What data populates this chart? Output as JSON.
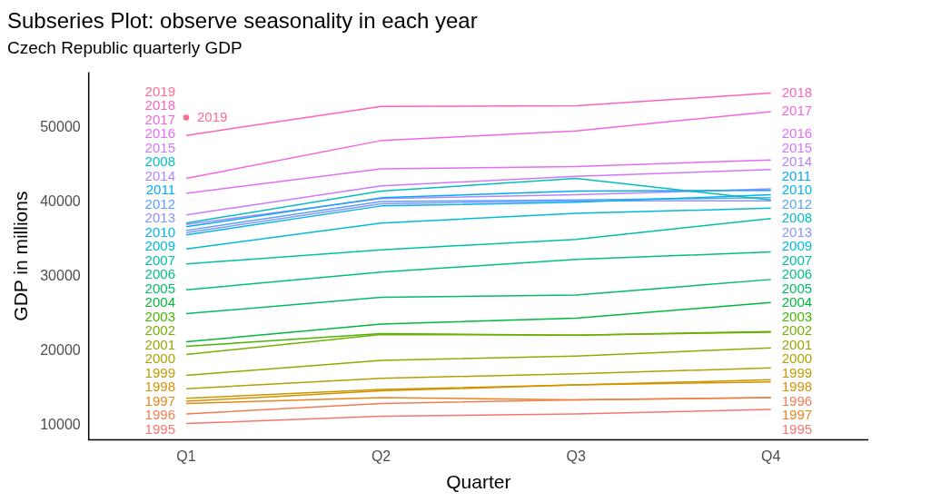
{
  "chart_data": {
    "type": "line",
    "title": "Subseries Plot: observe seasonality in each year",
    "subtitle": "Czech Republic quarterly GDP",
    "xlabel": "Quarter",
    "ylabel": "GDP in millions",
    "categories": [
      "Q1",
      "Q2",
      "Q3",
      "Q4"
    ],
    "ylim": [
      8000,
      57500
    ],
    "yticks": [
      10000,
      20000,
      30000,
      40000,
      50000
    ],
    "grid": false,
    "legend": false,
    "marker": "none",
    "line_style": "solid",
    "series": [
      {
        "name": "1995",
        "color": "#f8766d",
        "values": [
          10200,
          11200,
          11500,
          12100
        ]
      },
      {
        "name": "1996",
        "color": "#f27d52",
        "values": [
          11500,
          12900,
          13400,
          13700
        ]
      },
      {
        "name": "1997",
        "color": "#e7861b",
        "values": [
          12900,
          13700,
          13400,
          13700
        ]
      },
      {
        "name": "1998",
        "color": "#d89000",
        "values": [
          13200,
          14600,
          15400,
          15800
        ]
      },
      {
        "name": "1999",
        "color": "#c49a00",
        "values": [
          13600,
          14800,
          15400,
          16100
        ]
      },
      {
        "name": "2000",
        "color": "#aea200",
        "values": [
          14900,
          16300,
          16900,
          17700
        ]
      },
      {
        "name": "2001",
        "color": "#95a900",
        "values": [
          16700,
          18700,
          19300,
          20400
        ]
      },
      {
        "name": "2002",
        "color": "#75af00",
        "values": [
          19500,
          22200,
          22100,
          22500
        ]
      },
      {
        "name": "2003",
        "color": "#45b500",
        "values": [
          20600,
          22300,
          22100,
          22600
        ]
      },
      {
        "name": "2004",
        "color": "#00b93c",
        "values": [
          21200,
          23600,
          24400,
          26500
        ]
      },
      {
        "name": "2005",
        "color": "#00bc67",
        "values": [
          25000,
          27200,
          27500,
          29600
        ]
      },
      {
        "name": "2006",
        "color": "#00bf86",
        "values": [
          28200,
          30600,
          32300,
          33300
        ]
      },
      {
        "name": "2007",
        "color": "#00c0a3",
        "values": [
          31700,
          33600,
          35000,
          37800
        ]
      },
      {
        "name": "2008",
        "color": "#00bfbe",
        "values": [
          37200,
          41500,
          43200,
          40300
        ]
      },
      {
        "name": "2009",
        "color": "#00bbd6",
        "values": [
          33700,
          37200,
          38500,
          39200
        ]
      },
      {
        "name": "2010",
        "color": "#00b5ec",
        "values": [
          35600,
          39500,
          40000,
          41000
        ]
      },
      {
        "name": "2011",
        "color": "#00abfb",
        "values": [
          36700,
          40600,
          41500,
          41600
        ]
      },
      {
        "name": "2012",
        "color": "#5aa0ff",
        "values": [
          36200,
          40100,
          40300,
          40600
        ]
      },
      {
        "name": "2013",
        "color": "#8d93ff",
        "values": [
          35900,
          39800,
          40200,
          40200
        ]
      },
      {
        "name": "2014",
        "color": "#b285ff",
        "values": [
          37000,
          40500,
          41000,
          41800
        ]
      },
      {
        "name": "2015",
        "color": "#cf78ff",
        "values": [
          38300,
          42200,
          43500,
          44400
        ]
      },
      {
        "name": "2016",
        "color": "#e46df6",
        "values": [
          41200,
          44500,
          44800,
          45700
        ]
      },
      {
        "name": "2017",
        "color": "#f763e0",
        "values": [
          43200,
          48300,
          49600,
          52200
        ]
      },
      {
        "name": "2018",
        "color": "#ff62bc",
        "values": [
          49000,
          52900,
          53000,
          54700
        ]
      },
      {
        "name": "2019",
        "color": "#ff6c91",
        "type": "scatter",
        "marker": "circle",
        "values": [
          51400,
          null,
          null,
          null
        ]
      }
    ]
  }
}
